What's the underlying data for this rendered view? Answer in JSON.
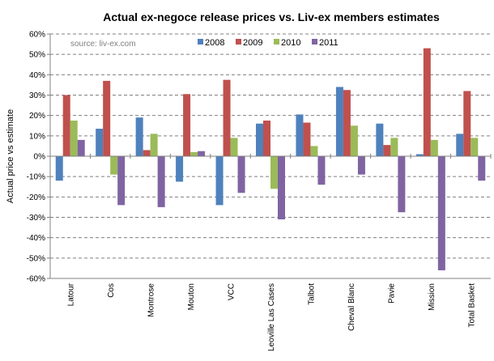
{
  "chart_data": {
    "type": "bar",
    "title": "Actual ex-negoce release prices vs. Liv-ex members estimates",
    "ylabel": "Actual price vs estimate",
    "xlabel": "",
    "source": "source: liv-ex.com",
    "ylim": [
      -60,
      60
    ],
    "yticks": [
      60,
      50,
      40,
      30,
      20,
      10,
      0,
      -10,
      -20,
      -30,
      -40,
      -50,
      -60
    ],
    "ytick_labels": [
      "60%",
      "50%",
      "40%",
      "30%",
      "20%",
      "10%",
      "0%",
      "-10%",
      "-20%",
      "-30%",
      "-40%",
      "-50%",
      "-60%"
    ],
    "grid": true,
    "legend_position": "top",
    "categories": [
      "Latour",
      "Cos",
      "Montrose",
      "Mouton",
      "VCC",
      "Leoville Las Cases",
      "Talbot",
      "Cheval Blanc",
      "Pavie",
      "Mission",
      "Total Basket"
    ],
    "series": [
      {
        "name": "2008",
        "color": "#4f81bd",
        "values": [
          -12,
          13.5,
          19,
          -12.5,
          -24,
          16,
          20.5,
          34,
          16,
          1,
          11
        ]
      },
      {
        "name": "2009",
        "color": "#c0504d",
        "values": [
          30,
          37,
          3,
          30.5,
          37.5,
          17.5,
          16.5,
          32.5,
          5.5,
          53,
          32
        ]
      },
      {
        "name": "2010",
        "color": "#9bbb59",
        "values": [
          17.5,
          -9,
          11,
          2,
          9,
          -16,
          5,
          15,
          9,
          8,
          9
        ]
      },
      {
        "name": "2011",
        "color": "#8064a2",
        "values": [
          8,
          -24,
          -25,
          2.5,
          -18,
          -31,
          -14,
          -9,
          -27.5,
          -56,
          -12
        ]
      }
    ]
  }
}
